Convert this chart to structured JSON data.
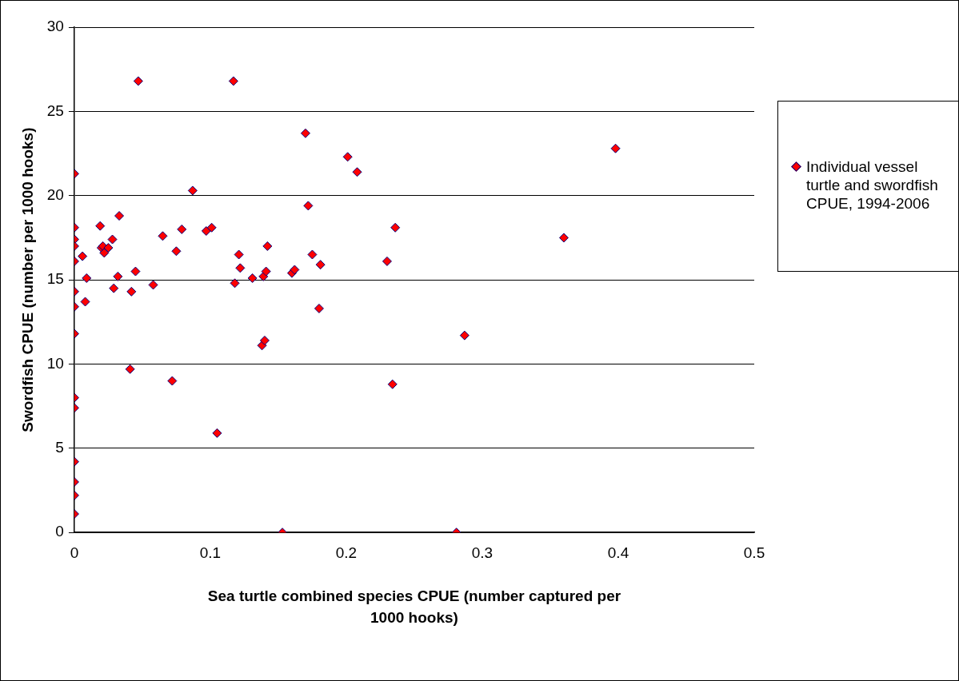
{
  "chart_data": {
    "type": "scatter",
    "xlabel": "Sea turtle combined species CPUE (number captured per 1000 hooks)",
    "ylabel": "Swordfish CPUE (number per 1000 hooks)",
    "xlim": [
      0,
      0.5
    ],
    "xticks": [
      0,
      0.1,
      0.2,
      0.3,
      0.4,
      0.5
    ],
    "ylim": [
      0,
      30
    ],
    "yticks": [
      0,
      5,
      10,
      15,
      20,
      25,
      30
    ],
    "grid": "y",
    "legend": "right",
    "marker": "diamond",
    "series": [
      {
        "name": "Individual vessel turtle and swordfish CPUE, 1994-2006",
        "color": "#ff0000",
        "x": [
          0,
          0,
          0,
          0,
          0,
          0,
          0,
          0,
          0,
          0,
          0,
          0,
          0,
          0,
          0.006,
          0.009,
          0.008,
          0.019,
          0.02,
          0.021,
          0.022,
          0.025,
          0.028,
          0.029,
          0.032,
          0.033,
          0.041,
          0.042,
          0.045,
          0.047,
          0.058,
          0.065,
          0.072,
          0.075,
          0.079,
          0.087,
          0.097,
          0.101,
          0.105,
          0.117,
          0.118,
          0.121,
          0.122,
          0.131,
          0.138,
          0.139,
          0.14,
          0.141,
          0.142,
          0.153,
          0.16,
          0.162,
          0.17,
          0.172,
          0.175,
          0.18,
          0.181,
          0.201,
          0.208,
          0.23,
          0.234,
          0.236,
          0.281,
          0.287,
          0.36,
          0.398
        ],
        "values": [
          21.3,
          18.1,
          17.4,
          17.0,
          16.1,
          14.3,
          13.4,
          11.8,
          8.0,
          7.4,
          4.2,
          3.0,
          2.2,
          1.1,
          16.4,
          15.1,
          13.7,
          18.2,
          16.9,
          17.0,
          16.6,
          16.9,
          17.4,
          14.5,
          15.2,
          18.8,
          9.7,
          14.3,
          15.5,
          26.8,
          14.7,
          17.6,
          9.0,
          16.7,
          18.0,
          20.3,
          17.9,
          18.1,
          5.9,
          26.8,
          14.8,
          16.5,
          15.7,
          15.1,
          11.1,
          15.2,
          11.4,
          15.5,
          17.0,
          0,
          15.4,
          15.6,
          23.7,
          19.4,
          16.5,
          13.3,
          15.9,
          22.3,
          21.4,
          16.1,
          8.8,
          18.1,
          0,
          11.7,
          17.5,
          22.8
        ]
      }
    ]
  }
}
